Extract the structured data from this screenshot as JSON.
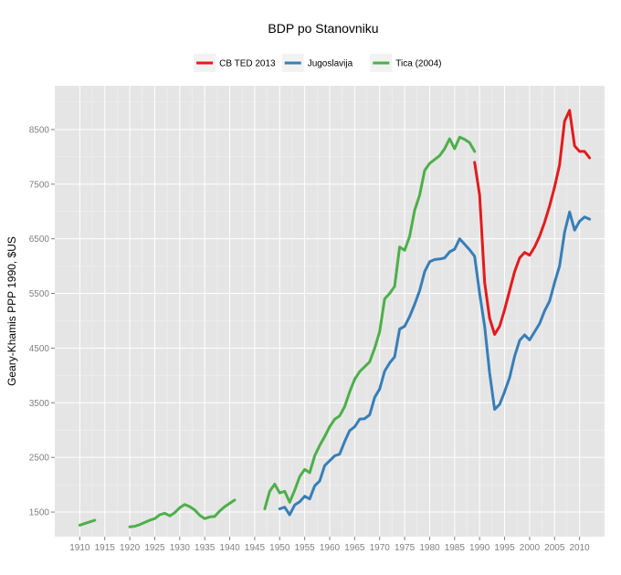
{
  "chart_data": {
    "type": "line",
    "title": "BDP po Stanovniku",
    "xlabel": "",
    "ylabel": "Geary-Khamis PPP 1990, $US",
    "xlim": [
      1905,
      2015
    ],
    "ylim": [
      1050,
      9300
    ],
    "x_ticks": [
      1910,
      1915,
      1920,
      1925,
      1930,
      1935,
      1940,
      1945,
      1950,
      1955,
      1960,
      1965,
      1970,
      1975,
      1980,
      1985,
      1990,
      1995,
      2000,
      2005,
      2010
    ],
    "y_ticks": [
      1500,
      2500,
      3500,
      4500,
      5500,
      6500,
      7500,
      8500
    ],
    "legend_position": "top",
    "series": [
      {
        "name": "CB TED 2013",
        "color": "#e41a1c",
        "segments": [
          [
            [
              1989,
              7900
            ],
            [
              1990,
              7300
            ],
            [
              1991,
              5700
            ],
            [
              1992,
              5050
            ],
            [
              1993,
              4750
            ],
            [
              1994,
              4900
            ],
            [
              1995,
              5200
            ],
            [
              1996,
              5550
            ],
            [
              1997,
              5900
            ],
            [
              1998,
              6150
            ],
            [
              1999,
              6250
            ],
            [
              2000,
              6200
            ],
            [
              2001,
              6350
            ],
            [
              2002,
              6550
            ],
            [
              2003,
              6800
            ],
            [
              2004,
              7100
            ],
            [
              2005,
              7450
            ],
            [
              2006,
              7850
            ],
            [
              2007,
              8650
            ],
            [
              2008,
              8850
            ],
            [
              2009,
              8200
            ],
            [
              2010,
              8100
            ],
            [
              2011,
              8100
            ],
            [
              2012,
              7980
            ]
          ]
        ]
      },
      {
        "name": "Jugoslavija",
        "color": "#377eb8",
        "segments": [
          [
            [
              1950,
              1560
            ],
            [
              1951,
              1590
            ],
            [
              1952,
              1450
            ],
            [
              1953,
              1630
            ],
            [
              1954,
              1690
            ],
            [
              1955,
              1790
            ],
            [
              1956,
              1740
            ],
            [
              1957,
              1980
            ],
            [
              1958,
              2070
            ],
            [
              1959,
              2350
            ],
            [
              1960,
              2440
            ],
            [
              1961,
              2530
            ],
            [
              1962,
              2560
            ],
            [
              1963,
              2790
            ],
            [
              1964,
              2990
            ],
            [
              1965,
              3060
            ],
            [
              1966,
              3200
            ],
            [
              1967,
              3210
            ],
            [
              1968,
              3280
            ],
            [
              1969,
              3600
            ],
            [
              1970,
              3750
            ],
            [
              1971,
              4080
            ],
            [
              1972,
              4230
            ],
            [
              1973,
              4340
            ],
            [
              1974,
              4850
            ],
            [
              1975,
              4900
            ],
            [
              1976,
              5080
            ],
            [
              1977,
              5300
            ],
            [
              1978,
              5550
            ],
            [
              1979,
              5900
            ],
            [
              1980,
              6080
            ],
            [
              1981,
              6120
            ],
            [
              1982,
              6130
            ],
            [
              1983,
              6150
            ],
            [
              1984,
              6260
            ],
            [
              1985,
              6310
            ],
            [
              1986,
              6500
            ],
            [
              1987,
              6400
            ],
            [
              1988,
              6300
            ],
            [
              1989,
              6180
            ],
            [
              1990,
              5500
            ],
            [
              1991,
              4900
            ],
            [
              1992,
              4050
            ],
            [
              1993,
              3380
            ],
            [
              1994,
              3470
            ],
            [
              1995,
              3700
            ],
            [
              1996,
              3960
            ],
            [
              1997,
              4350
            ],
            [
              1998,
              4640
            ],
            [
              1999,
              4740
            ],
            [
              2000,
              4650
            ],
            [
              2001,
              4800
            ],
            [
              2002,
              4950
            ],
            [
              2003,
              5180
            ],
            [
              2004,
              5360
            ],
            [
              2005,
              5700
            ],
            [
              2006,
              6000
            ],
            [
              2007,
              6620
            ],
            [
              2008,
              6990
            ],
            [
              2009,
              6660
            ],
            [
              2010,
              6820
            ],
            [
              2011,
              6900
            ],
            [
              2012,
              6860
            ]
          ]
        ]
      },
      {
        "name": "Tica (2004)",
        "color": "#4daf4a",
        "segments": [
          [
            [
              1910,
              1260
            ],
            [
              1911,
              1290
            ],
            [
              1912,
              1320
            ],
            [
              1913,
              1350
            ]
          ],
          [
            [
              1920,
              1230
            ],
            [
              1921,
              1240
            ],
            [
              1922,
              1270
            ],
            [
              1923,
              1310
            ],
            [
              1924,
              1350
            ],
            [
              1925,
              1380
            ],
            [
              1926,
              1450
            ],
            [
              1927,
              1480
            ],
            [
              1928,
              1430
            ],
            [
              1929,
              1490
            ],
            [
              1930,
              1580
            ],
            [
              1931,
              1640
            ],
            [
              1932,
              1600
            ],
            [
              1933,
              1540
            ],
            [
              1934,
              1440
            ],
            [
              1935,
              1380
            ],
            [
              1936,
              1410
            ],
            [
              1937,
              1420
            ],
            [
              1938,
              1520
            ],
            [
              1939,
              1600
            ],
            [
              1940,
              1660
            ],
            [
              1941,
              1720
            ]
          ],
          [
            [
              1947,
              1560
            ],
            [
              1948,
              1880
            ],
            [
              1949,
              2010
            ],
            [
              1950,
              1850
            ],
            [
              1951,
              1880
            ],
            [
              1952,
              1680
            ],
            [
              1953,
              1900
            ],
            [
              1954,
              2150
            ],
            [
              1955,
              2280
            ],
            [
              1956,
              2220
            ],
            [
              1957,
              2530
            ],
            [
              1958,
              2720
            ],
            [
              1959,
              2880
            ],
            [
              1960,
              3060
            ],
            [
              1961,
              3200
            ],
            [
              1962,
              3260
            ],
            [
              1963,
              3430
            ],
            [
              1964,
              3700
            ],
            [
              1965,
              3930
            ],
            [
              1966,
              4070
            ],
            [
              1967,
              4160
            ],
            [
              1968,
              4250
            ],
            [
              1969,
              4500
            ],
            [
              1970,
              4800
            ],
            [
              1971,
              5400
            ],
            [
              1972,
              5500
            ],
            [
              1973,
              5630
            ],
            [
              1974,
              6350
            ],
            [
              1975,
              6290
            ],
            [
              1976,
              6550
            ],
            [
              1977,
              7020
            ],
            [
              1978,
              7300
            ],
            [
              1979,
              7750
            ],
            [
              1980,
              7880
            ],
            [
              1981,
              7950
            ],
            [
              1982,
              8020
            ],
            [
              1983,
              8150
            ],
            [
              1984,
              8330
            ],
            [
              1985,
              8150
            ],
            [
              1986,
              8360
            ],
            [
              1987,
              8320
            ],
            [
              1988,
              8260
            ],
            [
              1989,
              8100
            ]
          ]
        ]
      }
    ]
  }
}
